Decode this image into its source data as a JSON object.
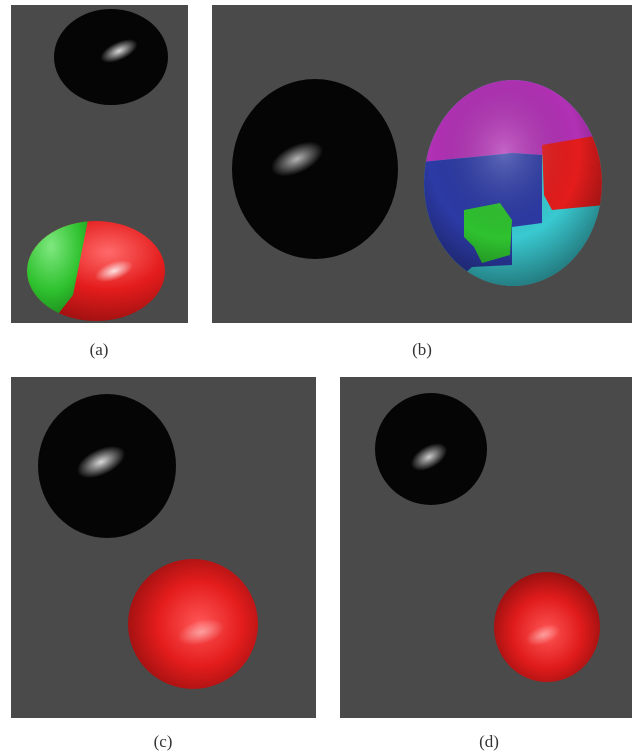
{
  "colors": {
    "background": "#4a4a4a",
    "black_sphere": "#050505",
    "red": "#e41c1c",
    "green": "#2fc22f",
    "magenta": "#b231b5",
    "blue": "#2c3aa5",
    "cyan": "#39c9d0"
  },
  "panels": [
    {
      "id": "a",
      "caption": "(a)"
    },
    {
      "id": "b",
      "caption": "(b)"
    },
    {
      "id": "c",
      "caption": "(c)"
    },
    {
      "id": "d",
      "caption": "(d)"
    }
  ]
}
